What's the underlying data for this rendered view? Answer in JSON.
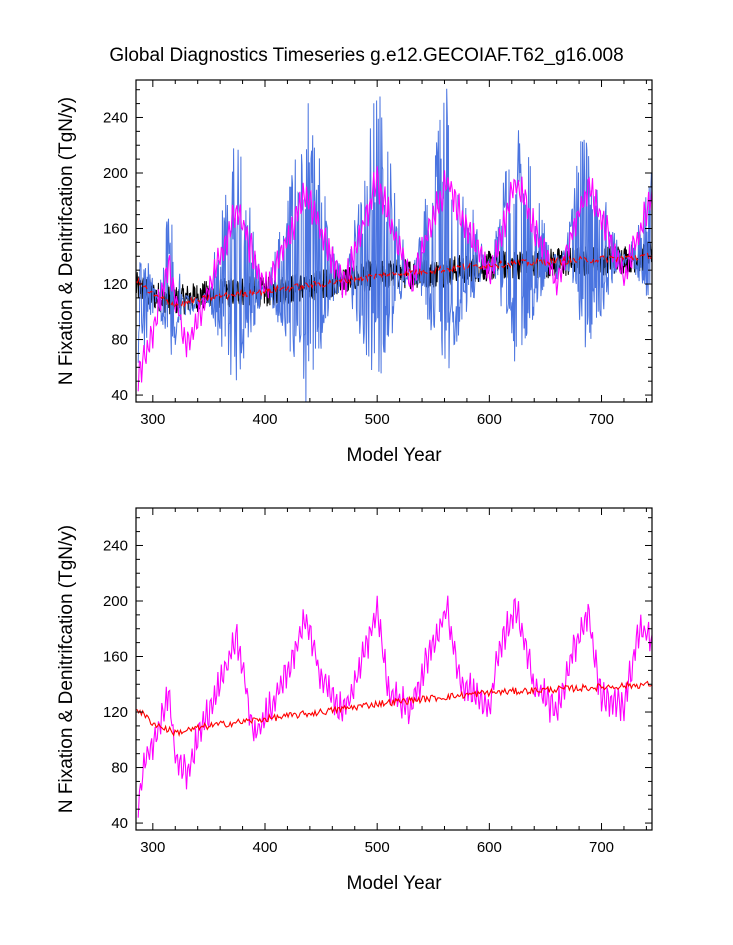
{
  "title": "Global Diagnostics Timeseries g.e12.GECOIAF.T62_g16.008",
  "colors": {
    "background": "#ffffff",
    "axes": "#000000",
    "ensemble_black": "#000000",
    "blue_monthly": "#4a74e0",
    "magenta_annual": "#ff00ff",
    "red_trend": "#ff0000"
  },
  "chart_data": [
    {
      "type": "line",
      "panel": "top",
      "xlabel": "Model Year",
      "ylabel": "N Fixation & Denitrifcation (TgN/y)",
      "xlim": [
        285,
        745
      ],
      "ylim": [
        35,
        267
      ],
      "xticks": [
        300,
        400,
        500,
        600,
        700
      ],
      "yticks": [
        40,
        80,
        120,
        160,
        200,
        240
      ],
      "grid": false,
      "legend": "none",
      "series": [
        {
          "color": "#000000",
          "style": "dense-noisy",
          "x": [
            285,
            300,
            320,
            350,
            380,
            400,
            450,
            500,
            550,
            600,
            650,
            700,
            745
          ],
          "y": [
            118,
            112,
            108,
            112,
            115,
            114,
            120,
            127,
            128,
            133,
            135,
            137,
            140
          ]
        },
        {
          "color": "#4a74e0",
          "style": "spiky-monthly",
          "x": [
            287,
            300,
            315,
            330,
            350,
            375,
            400,
            437,
            470,
            500,
            530,
            562,
            600,
            624,
            660,
            688,
            720,
            745
          ],
          "y": [
            60,
            85,
            192,
            90,
            120,
            237,
            110,
            265,
            120,
            267,
            125,
            265,
            125,
            267,
            120,
            255,
            130,
            204
          ]
        },
        {
          "color": "#ff00ff",
          "x": [
            287,
            300,
            314,
            330,
            350,
            375,
            400,
            437,
            470,
            500,
            530,
            562,
            600,
            624,
            660,
            688,
            720,
            745
          ],
          "y": [
            55,
            85,
            135,
            75,
            115,
            175,
            115,
            185,
            118,
            195,
            120,
            194,
            125,
            195,
            120,
            192,
            125,
            183
          ]
        },
        {
          "color": "#ff0000",
          "x": [
            285,
            300,
            320,
            350,
            380,
            400,
            450,
            500,
            550,
            600,
            650,
            700,
            745
          ],
          "y": [
            123,
            112,
            105,
            110,
            113,
            115,
            120,
            126,
            130,
            134,
            136,
            138,
            140
          ]
        }
      ]
    },
    {
      "type": "line",
      "panel": "bottom",
      "xlabel": "Model Year",
      "ylabel": "N Fixation & Denitrifcation (TgN/y)",
      "xlim": [
        285,
        745
      ],
      "ylim": [
        35,
        267
      ],
      "xticks": [
        300,
        400,
        500,
        600,
        700
      ],
      "yticks": [
        40,
        80,
        120,
        160,
        200,
        240
      ],
      "grid": false,
      "legend": "none",
      "series": [
        {
          "color": "#ff00ff",
          "x": [
            287,
            292,
            300,
            314,
            320,
            330,
            340,
            360,
            375,
            390,
            400,
            420,
            437,
            450,
            470,
            490,
            500,
            510,
            530,
            550,
            562,
            575,
            600,
            610,
            624,
            640,
            660,
            675,
            688,
            700,
            720,
            735,
            745
          ],
          "y": [
            55,
            80,
            95,
            135,
            90,
            75,
            100,
            140,
            175,
            105,
            115,
            150,
            187,
            145,
            118,
            165,
            195,
            135,
            122,
            170,
            194,
            140,
            125,
            170,
            195,
            140,
            120,
            165,
            192,
            130,
            125,
            183,
            170
          ]
        },
        {
          "color": "#ff0000",
          "x": [
            285,
            300,
            320,
            350,
            380,
            400,
            450,
            500,
            550,
            600,
            650,
            700,
            745
          ],
          "y": [
            123,
            112,
            105,
            110,
            113,
            115,
            120,
            126,
            130,
            134,
            136,
            138,
            140
          ]
        }
      ]
    }
  ]
}
